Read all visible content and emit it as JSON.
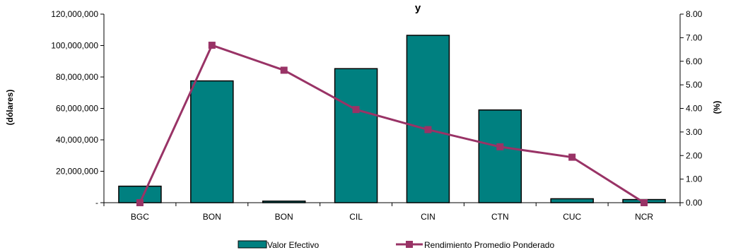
{
  "chart_data": {
    "type": "bar",
    "title": "y",
    "categories": [
      "BGC",
      "BON",
      "BON",
      "CIL",
      "CIN",
      "CTN",
      "CUC",
      "NCR"
    ],
    "series": [
      {
        "name": "Valor Efectivo",
        "type": "bar",
        "axis": "left",
        "color": "#008080",
        "values": [
          10500000,
          77500000,
          1000000,
          85300000,
          106500000,
          59000000,
          2500000,
          2000000
        ]
      },
      {
        "name": "Rendimiento Promedio Ponderado",
        "type": "line",
        "axis": "right",
        "color": "#993366",
        "values": [
          0.0,
          6.68,
          5.62,
          3.95,
          3.1,
          2.37,
          1.93,
          0.0
        ]
      }
    ],
    "ylabel_left": "(dólares)",
    "ylabel_right": "(%)",
    "ylim_left": [
      0,
      120000000
    ],
    "ylim_right": [
      0,
      8
    ],
    "y_ticks_left": [
      "-",
      "20,000,000",
      "40,000,000",
      "60,000,000",
      "80,000,000",
      "100,000,000",
      "120,000,000"
    ],
    "y_ticks_right": [
      "0.00",
      "1.00",
      "2.00",
      "3.00",
      "4.00",
      "5.00",
      "6.00",
      "7.00",
      "8.00"
    ],
    "grid": false,
    "legend_position": "bottom"
  }
}
